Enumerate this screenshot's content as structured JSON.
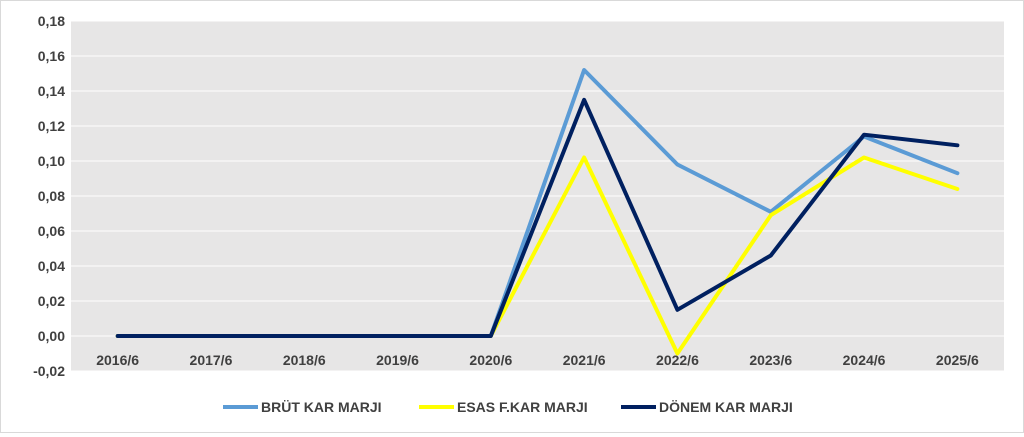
{
  "chart_data": {
    "type": "line",
    "title": "",
    "xlabel": "",
    "ylabel": "",
    "categories": [
      "2016/6",
      "2017/6",
      "2018/6",
      "2019/6",
      "2020/6",
      "2021/6",
      "2022/6",
      "2023/6",
      "2024/6",
      "2025/6"
    ],
    "y_ticks": [
      "0,18",
      "0,16",
      "0,14",
      "0,12",
      "0,10",
      "0,08",
      "0,06",
      "0,04",
      "0,02",
      "0,00",
      "-0,02"
    ],
    "ylim": [
      -0.02,
      0.18
    ],
    "grid": true,
    "legend_position": "bottom",
    "series": [
      {
        "name": "BRÜT KAR MARJI",
        "color": "#5b9bd5",
        "values": [
          0,
          0,
          0,
          0,
          0,
          0.152,
          0.098,
          0.071,
          0.114,
          0.093
        ]
      },
      {
        "name": "ESAS F.KAR MARJI",
        "color": "#ffff00",
        "values": [
          0,
          0,
          0,
          0,
          0,
          0.102,
          -0.01,
          0.069,
          0.102,
          0.084
        ]
      },
      {
        "name": "DÖNEM KAR MARJI",
        "color": "#002060",
        "values": [
          0,
          0,
          0,
          0,
          0,
          0.135,
          0.015,
          0.046,
          0.115,
          0.109
        ]
      }
    ],
    "plot_background": "#e7e6e6",
    "grid_color": "#ffffff"
  }
}
